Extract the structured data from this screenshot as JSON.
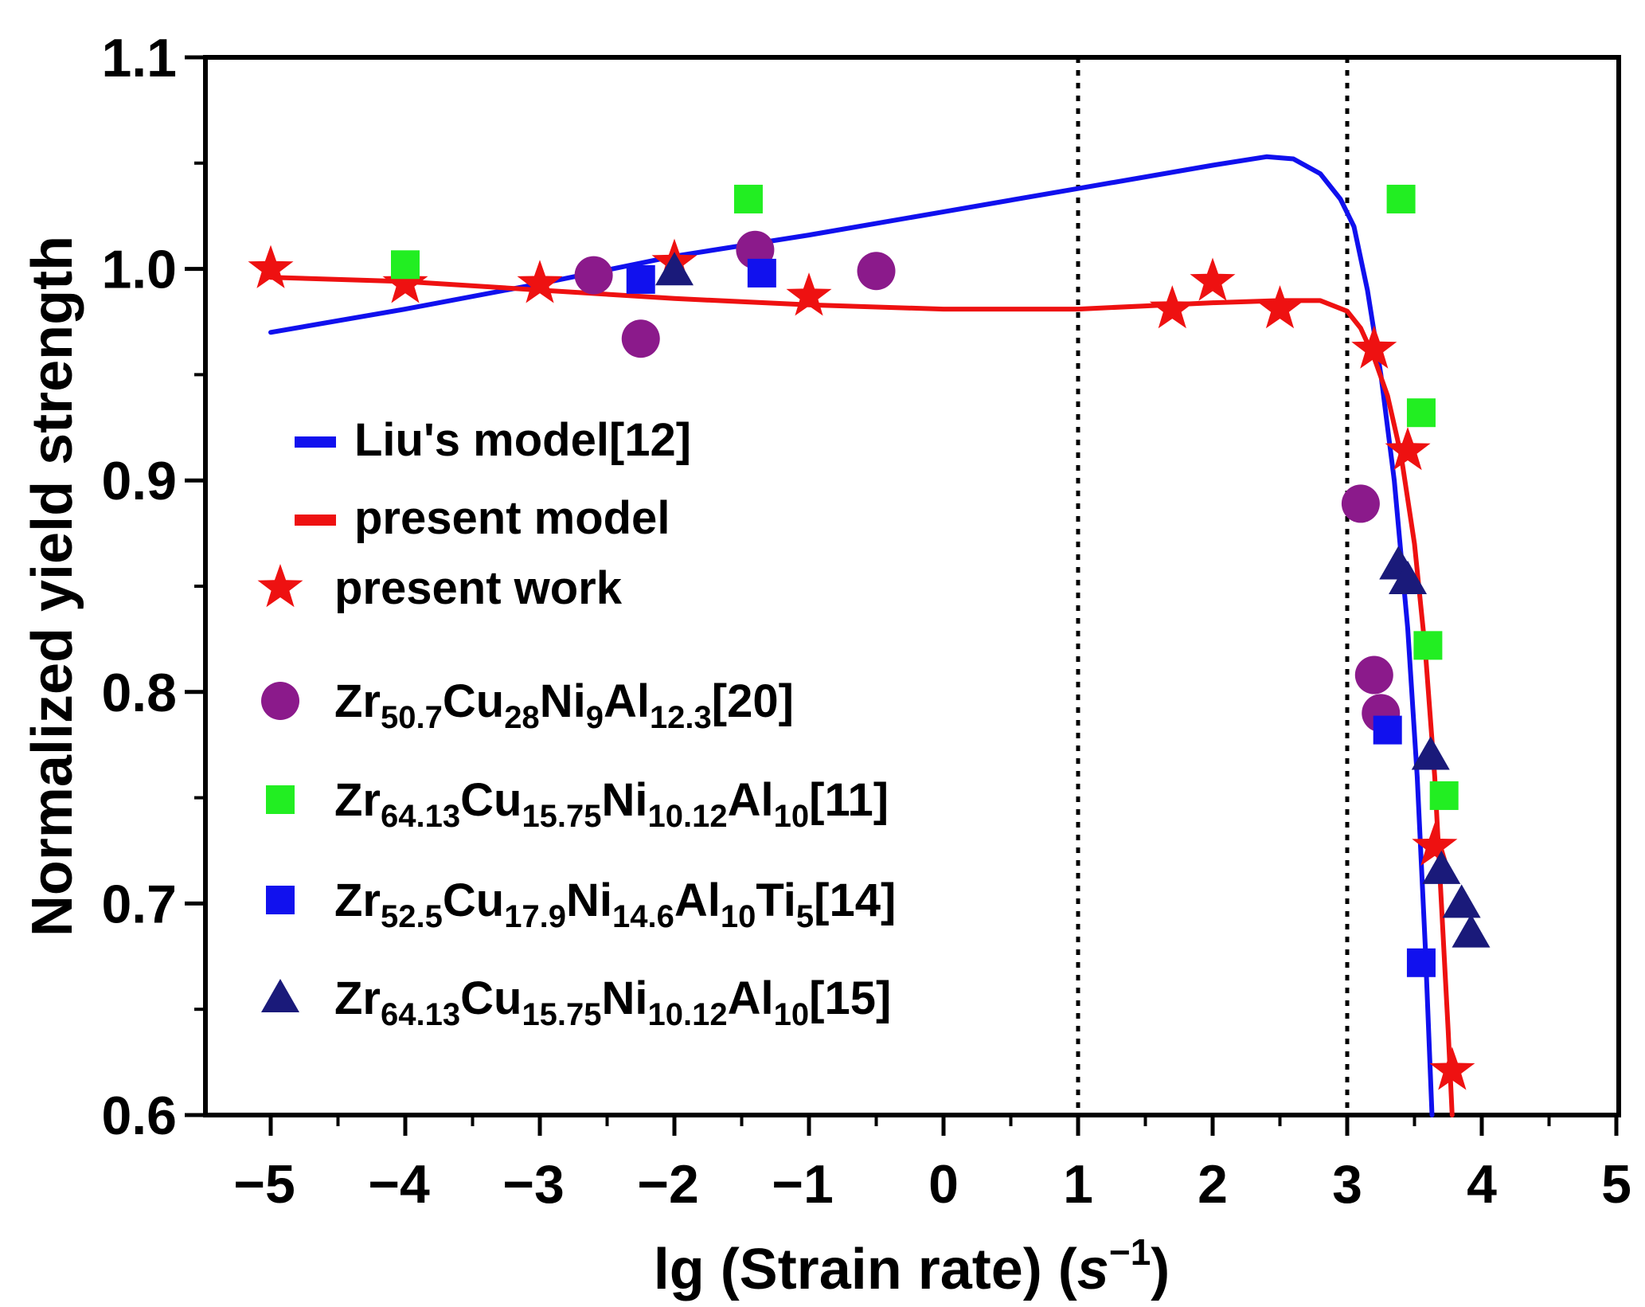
{
  "chart_data": {
    "type": "scatter",
    "title": "",
    "xlabel": {
      "main": "lg (Strain rate) (",
      "italic": "s",
      "sup": "−1",
      "close": ")"
    },
    "ylabel": "Normalized yield strength",
    "xlim": [
      -5.5,
      5
    ],
    "ylim": [
      0.6,
      1.1
    ],
    "x_ticks": [
      -5,
      -4,
      -3,
      -2,
      -1,
      0,
      1,
      2,
      3,
      4,
      5
    ],
    "x_tick_labels": [
      "−5",
      "−4",
      "−3",
      "−2",
      "−1",
      "0",
      "1",
      "2",
      "3",
      "4",
      "5"
    ],
    "y_ticks": [
      0.6,
      0.7,
      0.8,
      0.9,
      1.0,
      1.1
    ],
    "y_tick_labels": [
      "0.6",
      "0.7",
      "0.8",
      "0.9",
      "1.0",
      "1.1"
    ],
    "y_minor_step": 0.05,
    "x_minor_step": 0.5,
    "vlines": [
      1,
      3
    ],
    "grid": false,
    "legend_position": "left-center",
    "series": [
      {
        "name": "Liu's model[12]",
        "legend_parts": [
          {
            "t": "Liu's model[12]"
          }
        ],
        "kind": "line",
        "color": "#1010ee",
        "x": [
          -5.0,
          -4.0,
          -3.0,
          -2.0,
          -1.0,
          0.0,
          1.0,
          2.0,
          2.4,
          2.6,
          2.8,
          2.95,
          3.05,
          3.15,
          3.25,
          3.35,
          3.45,
          3.52,
          3.58,
          3.63
        ],
        "values": [
          0.97,
          0.981,
          0.993,
          1.006,
          1.016,
          1.027,
          1.038,
          1.049,
          1.053,
          1.052,
          1.045,
          1.033,
          1.02,
          0.99,
          0.95,
          0.9,
          0.83,
          0.76,
          0.68,
          0.6
        ]
      },
      {
        "name": "present model",
        "legend_parts": [
          {
            "t": "present model"
          }
        ],
        "kind": "line",
        "color": "#ee1111",
        "x": [
          -5.0,
          -4.0,
          -3.0,
          -2.0,
          -1.0,
          0.0,
          1.0,
          2.0,
          2.5,
          2.8,
          3.0,
          3.1,
          3.2,
          3.3,
          3.4,
          3.5,
          3.58,
          3.65,
          3.7,
          3.75,
          3.78
        ],
        "values": [
          0.996,
          0.994,
          0.99,
          0.986,
          0.983,
          0.981,
          0.981,
          0.984,
          0.985,
          0.985,
          0.98,
          0.972,
          0.958,
          0.94,
          0.912,
          0.87,
          0.82,
          0.76,
          0.7,
          0.64,
          0.6
        ]
      },
      {
        "name": "present work",
        "legend_parts": [
          {
            "t": "present work"
          }
        ],
        "kind": "star",
        "color": "#ee1111",
        "x": [
          -5.0,
          -4.0,
          -3.0,
          -2.0,
          -1.0,
          1.7,
          2.0,
          2.5,
          3.2,
          3.45,
          3.65,
          3.78
        ],
        "values": [
          1.0,
          0.993,
          0.993,
          1.003,
          0.987,
          0.981,
          0.994,
          0.981,
          0.962,
          0.914,
          0.727,
          0.621
        ]
      },
      {
        "name": "Zr50.7Cu28Ni9Al12.3[20]",
        "legend_parts": [
          {
            "t": "Zr"
          },
          {
            "t": "50.7",
            "sub": true
          },
          {
            "t": "Cu"
          },
          {
            "t": "28",
            "sub": true
          },
          {
            "t": "Ni"
          },
          {
            "t": "9",
            "sub": true
          },
          {
            "t": "Al"
          },
          {
            "t": "12.3",
            "sub": true
          },
          {
            "t": "[20]"
          }
        ],
        "kind": "circle",
        "color": "#8b1a8b",
        "x": [
          -2.6,
          -2.25,
          -1.4,
          -0.5,
          3.1,
          3.2,
          3.25
        ],
        "values": [
          0.997,
          0.967,
          1.009,
          0.999,
          0.889,
          0.808,
          0.79
        ]
      },
      {
        "name": "Zr64.13Cu15.75Ni10.12Al10[11]",
        "legend_parts": [
          {
            "t": "Zr"
          },
          {
            "t": "64.13",
            "sub": true
          },
          {
            "t": "Cu"
          },
          {
            "t": "15.75",
            "sub": true
          },
          {
            "t": "Ni"
          },
          {
            "t": "10.12",
            "sub": true
          },
          {
            "t": "Al"
          },
          {
            "t": "10",
            "sub": true
          },
          {
            "t": "[11]"
          }
        ],
        "kind": "square",
        "color": "#22ee22",
        "x": [
          -4.0,
          -1.45,
          3.4,
          3.55,
          3.6,
          3.72
        ],
        "values": [
          1.002,
          1.033,
          1.033,
          0.932,
          0.822,
          0.751
        ]
      },
      {
        "name": "Zr52.5Cu17.9Ni14.6Al10Ti5[14]",
        "legend_parts": [
          {
            "t": "Zr"
          },
          {
            "t": "52.5",
            "sub": true
          },
          {
            "t": "Cu"
          },
          {
            "t": "17.9",
            "sub": true
          },
          {
            "t": "Ni"
          },
          {
            "t": "14.6",
            "sub": true
          },
          {
            "t": "Al"
          },
          {
            "t": "10",
            "sub": true
          },
          {
            "t": "Ti"
          },
          {
            "t": "5",
            "sub": true
          },
          {
            "t": "[14]"
          }
        ],
        "kind": "square",
        "color": "#1111ee",
        "x": [
          -2.25,
          -1.35,
          3.3,
          3.55
        ],
        "values": [
          0.995,
          0.998,
          0.782,
          0.672
        ]
      },
      {
        "name": "Zr64.13Cu15.75Ni10.12Al10[15]",
        "legend_parts": [
          {
            "t": "Zr"
          },
          {
            "t": "64.13",
            "sub": true
          },
          {
            "t": "Cu"
          },
          {
            "t": "15.75",
            "sub": true
          },
          {
            "t": "Ni"
          },
          {
            "t": "10.12",
            "sub": true
          },
          {
            "t": "Al"
          },
          {
            "t": "10",
            "sub": true
          },
          {
            "t": "[15]"
          }
        ],
        "kind": "triangle",
        "color": "#1a1a7a",
        "x": [
          -2.0,
          3.38,
          3.45,
          3.62,
          3.7,
          3.85,
          3.92
        ],
        "values": [
          0.999,
          0.86,
          0.853,
          0.77,
          0.716,
          0.7,
          0.686
        ]
      }
    ]
  }
}
